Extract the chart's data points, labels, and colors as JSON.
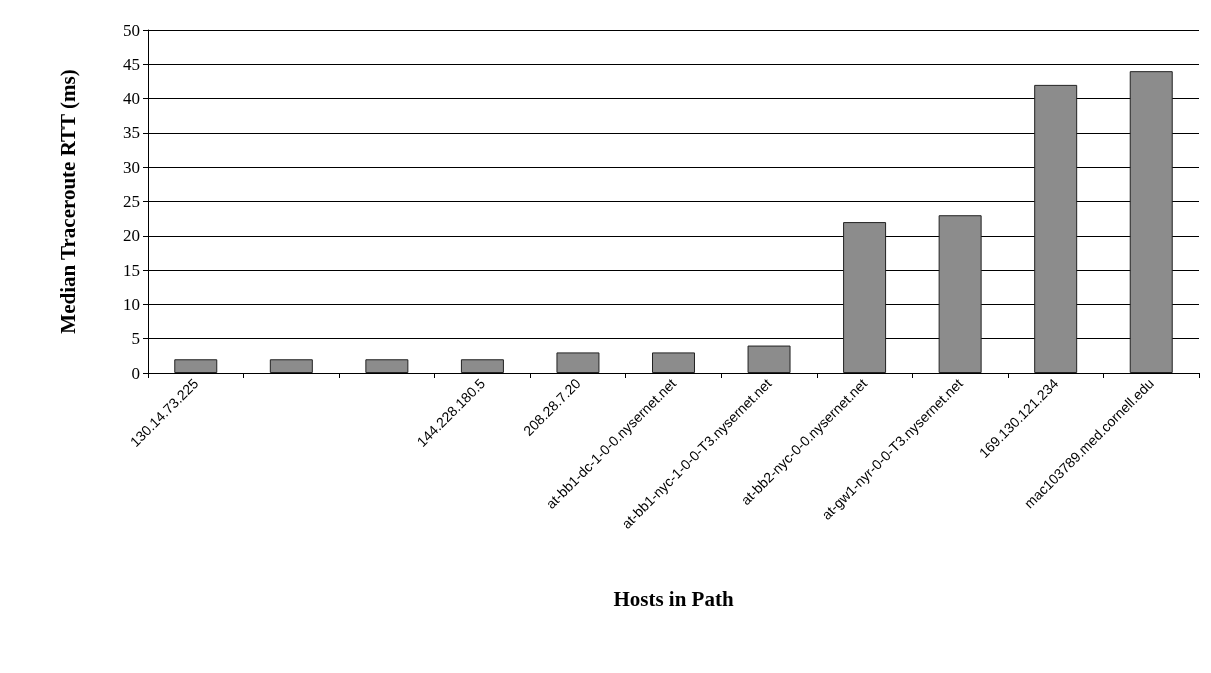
{
  "chart_data": {
    "type": "bar",
    "xlabel": "Hosts in Path",
    "ylabel": "Median Traceroute RTT (ms)",
    "categories": [
      "130.14.73.225",
      null,
      null,
      "144.228.180.5",
      "208.28.7.20",
      "at-bb1-dc-1-0-0.nysernet.net",
      "at-bb1-nyc-1-0-0-T3.nysernet.net",
      "at-bb2-nyc-0-0.nysernet.net",
      "at-gw1-nyr-0-0-T3.nysernet.net",
      "169.130.121.234",
      "mac103789.med.cornell.edu"
    ],
    "values": [
      2,
      2,
      2,
      2,
      3,
      3,
      4,
      22,
      23,
      42,
      44
    ],
    "color": "#8c8c8c",
    "ylim": [
      0,
      50
    ],
    "yticks": [
      0,
      5,
      10,
      15,
      20,
      25,
      30,
      35,
      40,
      45,
      50
    ],
    "grid": "y"
  }
}
